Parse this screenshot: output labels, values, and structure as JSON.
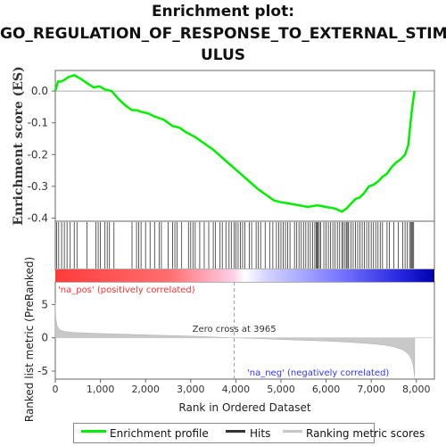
{
  "title_lines": [
    "Enrichment plot:",
    "GO_REGULATION_OF_RESPONSE_TO_EXTERNAL_STIM",
    "ULUS"
  ],
  "colors": {
    "enrichment_line": "#00ee00",
    "hits": "#333333",
    "metric_fill": "#c8c8c8",
    "pos_text": "#ff3333",
    "neg_text": "#3333ff",
    "zero_line": "#aaaaaa"
  },
  "chart_data": [
    {
      "type": "line",
      "ylabel": "Enrichment score (ES)",
      "xlim": [
        0,
        8400
      ],
      "ylim": [
        -0.41,
        0.065
      ],
      "yticks": [
        0.0,
        -0.1,
        -0.2,
        -0.3,
        -0.4
      ],
      "ytick_labels": [
        "0.0",
        "-0.1",
        "-0.2",
        "-0.3",
        "-0.4"
      ],
      "series": [
        {
          "name": "Enrichment profile",
          "x": [
            0,
            60,
            120,
            200,
            300,
            420,
            550,
            700,
            850,
            980,
            1100,
            1250,
            1400,
            1550,
            1700,
            1800,
            1900,
            2050,
            2200,
            2400,
            2600,
            2750,
            2900,
            3100,
            3300,
            3500,
            3700,
            3900,
            4100,
            4300,
            4500,
            4700,
            4850,
            5000,
            5200,
            5400,
            5600,
            5800,
            6000,
            6200,
            6350,
            6450,
            6550,
            6650,
            6750,
            6850,
            6950,
            7050,
            7150,
            7250,
            7350,
            7450,
            7550,
            7650,
            7750,
            7820,
            7870,
            7910,
            7940,
            7960
          ],
          "y": [
            0.0,
            0.03,
            0.03,
            0.035,
            0.045,
            0.05,
            0.04,
            0.025,
            0.012,
            0.015,
            0.005,
            0.0,
            -0.025,
            -0.045,
            -0.06,
            -0.06,
            -0.065,
            -0.07,
            -0.08,
            -0.09,
            -0.11,
            -0.115,
            -0.13,
            -0.145,
            -0.165,
            -0.185,
            -0.21,
            -0.235,
            -0.26,
            -0.285,
            -0.31,
            -0.33,
            -0.345,
            -0.35,
            -0.355,
            -0.36,
            -0.365,
            -0.36,
            -0.365,
            -0.37,
            -0.38,
            -0.37,
            -0.355,
            -0.34,
            -0.335,
            -0.32,
            -0.3,
            -0.295,
            -0.285,
            -0.27,
            -0.26,
            -0.24,
            -0.225,
            -0.215,
            -0.2,
            -0.17,
            -0.1,
            -0.05,
            -0.02,
            0.0
          ]
        }
      ]
    },
    {
      "type": "hits",
      "hit_positions": [
        30,
        75,
        140,
        200,
        260,
        330,
        420,
        480,
        700,
        900,
        950,
        1000,
        1100,
        1150,
        1200,
        1300,
        1700,
        1800,
        1850,
        1900,
        2000,
        2100,
        2200,
        2300,
        2350,
        2500,
        2600,
        2650,
        2700,
        2800,
        2950,
        3000,
        3050,
        3100,
        3200,
        3300,
        3400,
        3500,
        3550,
        3650,
        3700,
        3780,
        3850,
        3900,
        3960,
        4000,
        4050,
        4100,
        4150,
        4200,
        4300,
        4350,
        4450,
        4500,
        4550,
        4650,
        4750,
        4820,
        4900,
        4950,
        5000,
        5050,
        5100,
        5150,
        5200,
        5300,
        5350,
        5400,
        5450,
        5500,
        5550,
        5600,
        5650,
        5700,
        5750,
        5780,
        5800,
        5820,
        5850,
        5880,
        5950,
        6000,
        6050,
        6100,
        6150,
        6200,
        6250,
        6300,
        6350,
        6380,
        6420,
        6450,
        6480,
        6500,
        6550,
        6600,
        6650,
        6700,
        6750,
        6800,
        6850,
        6900,
        6950,
        7000,
        7050,
        7100,
        7150,
        7200,
        7250,
        7350,
        7400,
        7500,
        7600,
        7700,
        7750,
        7800,
        7850,
        7880,
        7900,
        7920,
        7940
      ]
    },
    {
      "type": "area",
      "ylabel": "Ranked list metric (PreRanked)",
      "xlabel": "Rank in Ordered Dataset",
      "xlim": [
        0,
        8400
      ],
      "ylim": [
        -6.2,
        8.4
      ],
      "yticks": [
        5,
        0,
        -5
      ],
      "ytick_labels": [
        "5",
        "0",
        "-5"
      ],
      "xticks": [
        0,
        1000,
        2000,
        3000,
        4000,
        5000,
        6000,
        7000,
        8000
      ],
      "xtick_labels": [
        "0",
        "1,000",
        "2,000",
        "3,000",
        "4,000",
        "5,000",
        "6,000",
        "7,000",
        "8,000"
      ],
      "x": [
        0,
        10,
        40,
        100,
        200,
        400,
        700,
        1000,
        1500,
        2000,
        2500,
        3000,
        3500,
        3965,
        4500,
        5000,
        5500,
        6000,
        6500,
        7000,
        7300,
        7500,
        7700,
        7800,
        7850,
        7900,
        7930,
        7950,
        7963
      ],
      "values": [
        5.2,
        3.0,
        1.8,
        1.2,
        0.95,
        0.8,
        0.72,
        0.65,
        0.55,
        0.45,
        0.35,
        0.25,
        0.12,
        0.0,
        -0.12,
        -0.25,
        -0.38,
        -0.5,
        -0.65,
        -0.9,
        -1.1,
        -1.35,
        -1.8,
        -2.3,
        -2.7,
        -3.4,
        -4.2,
        -5.2,
        -6.0
      ],
      "annotations": {
        "zero_cross": "Zero cross at 3965",
        "zero_cross_x": 3965,
        "pos_label": "'na_pos' (positively correlated)",
        "neg_label": "'na_neg' (negatively correlated)"
      }
    }
  ],
  "legend": {
    "items": [
      {
        "label": "Enrichment profile",
        "color": "#00ee00"
      },
      {
        "label": "Hits",
        "color": "#333333"
      },
      {
        "label": "Ranking metric scores",
        "color": "#c8c8c8"
      }
    ]
  }
}
